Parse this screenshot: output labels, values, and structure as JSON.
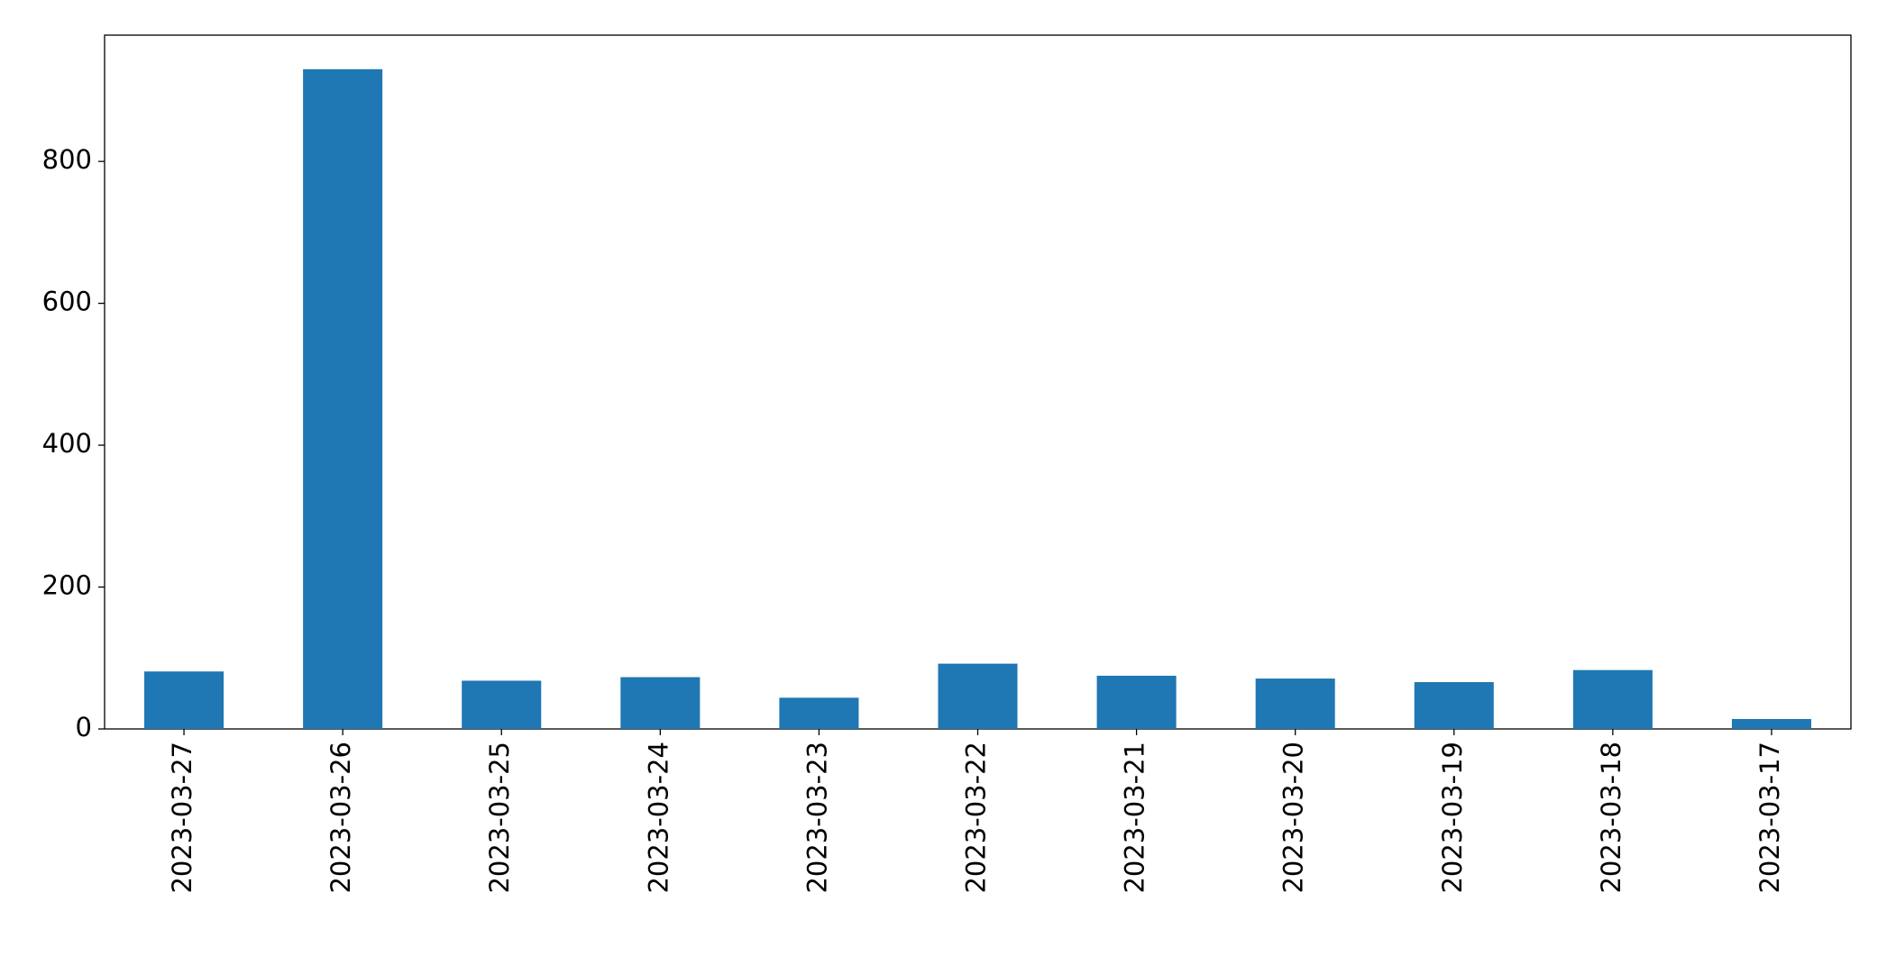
{
  "chart_data": {
    "type": "bar",
    "categories": [
      "2023-03-27",
      "2023-03-26",
      "2023-03-25",
      "2023-03-24",
      "2023-03-23",
      "2023-03-22",
      "2023-03-21",
      "2023-03-20",
      "2023-03-19",
      "2023-03-18",
      "2023-03-17"
    ],
    "values": [
      81,
      930,
      68,
      73,
      44,
      92,
      75,
      71,
      66,
      83,
      14
    ],
    "color": "#1f77b4",
    "ylim": [
      0,
      978
    ],
    "yticks": [
      0,
      200,
      400,
      600,
      800
    ],
    "grid": false
  }
}
